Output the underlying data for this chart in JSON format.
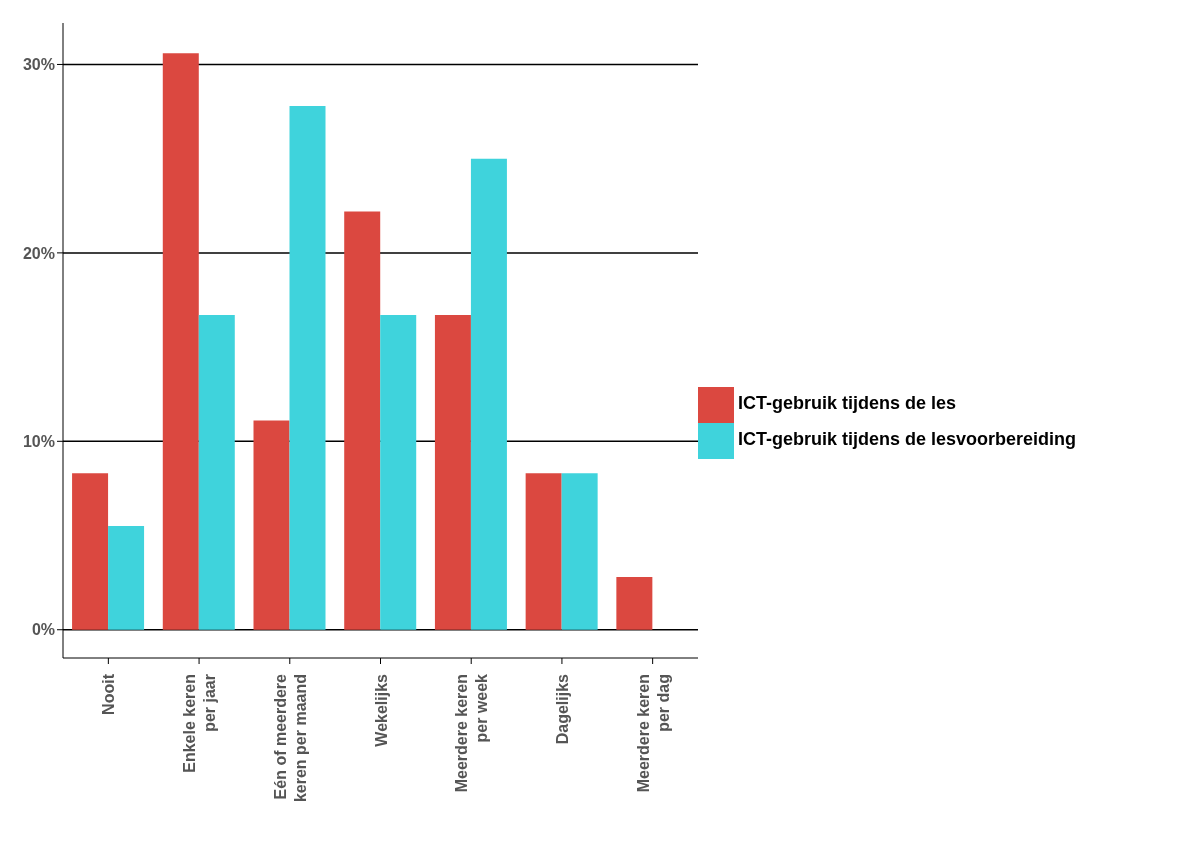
{
  "chart_data": {
    "type": "bar",
    "categories": [
      "Nooit",
      "Enkele keren\nper jaar",
      "Eén of meerdere\nkeren per maand",
      "Wekelijks",
      "Meerdere keren\nper week",
      "Dagelijks",
      "Meerdere keren\nper dag"
    ],
    "series": [
      {
        "name": "ICT-gebruik tijdens de les",
        "color": "#db4840",
        "values": [
          8.3,
          30.6,
          11.1,
          22.2,
          16.7,
          8.3,
          2.8
        ]
      },
      {
        "name": "ICT-gebruik tijdens de lesvoorbereiding",
        "color": "#3fd3dc",
        "values": [
          5.5,
          16.7,
          27.8,
          16.7,
          25.0,
          8.3,
          null
        ]
      }
    ],
    "ylim": [
      -1.5,
      32.2
    ],
    "yticks": [
      {
        "value": 0,
        "label": "0%"
      },
      {
        "value": 10,
        "label": "10%"
      },
      {
        "value": 20,
        "label": "20%"
      },
      {
        "value": 30,
        "label": "30%"
      }
    ],
    "grid": "y",
    "legend": "right"
  }
}
